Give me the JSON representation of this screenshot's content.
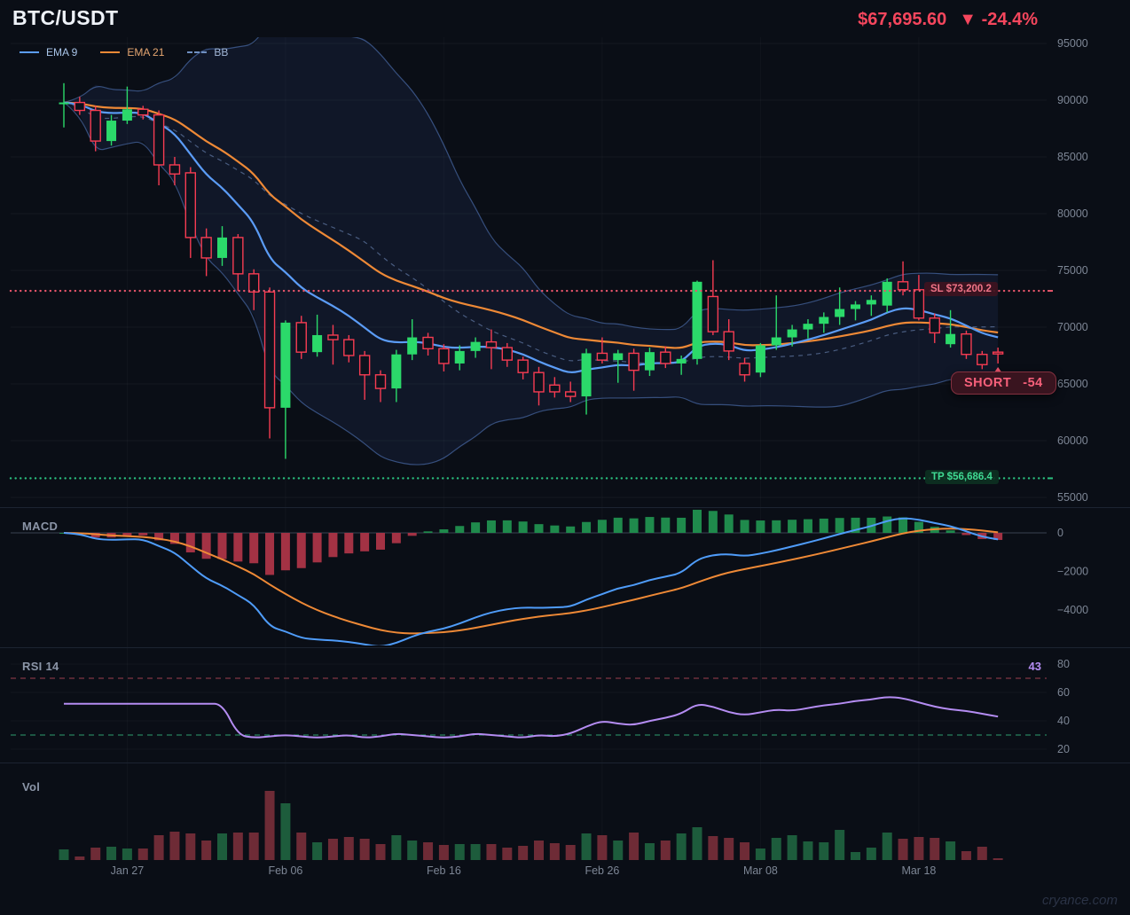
{
  "header": {
    "symbol": "BTC/USDT",
    "price": "$67,695.60",
    "change": "▼ -24.4%"
  },
  "legend": [
    {
      "label": "EMA 9",
      "color": "#5b9cf6",
      "style": "solid"
    },
    {
      "label": "EMA 21",
      "color": "#ee8936",
      "style": "solid"
    },
    {
      "label": "BB",
      "color": "#6f8fc0",
      "style": "dashed"
    }
  ],
  "panels": {
    "macd_label": "MACD",
    "rsi_label": "RSI 14",
    "vol_label": "Vol"
  },
  "watermark": "cryance.com",
  "colors": {
    "background": "#0a0e16",
    "bullish": "#2bd96a",
    "bearish": "#f6465d",
    "ema9": "#5b9cf6",
    "ema21": "#ee8936",
    "bb_line": "rgba(96,140,220,0.5)",
    "bb_fill": "rgba(80,125,220,0.09)",
    "sl_line": "#e8556b",
    "tp_line": "#2bc07f",
    "macd_line": "#4f9cf9",
    "macd_signal": "#ee8936",
    "hist_pos": "#1f8a4c",
    "hist_neg": "#a33244",
    "rsi_line": "#b48cf2",
    "vol_up": "#1d5c3c",
    "vol_down": "#6e2b36",
    "axis_text": "#7d8695"
  },
  "chart_data": {
    "type": "candlestick",
    "title": "BTC/USDT daily with EMA 9/21, Bollinger Bands, MACD, RSI 14, Volume",
    "price_axis": [
      {
        "label": "95000",
        "v": 95000
      },
      {
        "label": "90000",
        "v": 90000
      },
      {
        "label": "85000",
        "v": 85000
      },
      {
        "label": "80000",
        "v": 80000
      },
      {
        "label": "75000",
        "v": 75000
      },
      {
        "label": "70000",
        "v": 70000
      },
      {
        "label": "65000",
        "v": 65000
      },
      {
        "label": "60000",
        "v": 60000
      },
      {
        "label": "55000",
        "v": 55000
      }
    ],
    "x_labels": [
      {
        "text": "Jan 27",
        "index": 4
      },
      {
        "text": "Feb 06",
        "index": 14
      },
      {
        "text": "Feb 16",
        "index": 24
      },
      {
        "text": "Feb 26",
        "index": 34
      },
      {
        "text": "Mar 08",
        "index": 44
      },
      {
        "text": "Mar 18",
        "index": 54
      }
    ],
    "candles": [
      [
        89700,
        91500,
        87600,
        89800
      ],
      [
        89800,
        90300,
        88700,
        89100
      ],
      [
        89100,
        89500,
        85500,
        86400
      ],
      [
        86400,
        88700,
        86000,
        88200
      ],
      [
        88200,
        91200,
        87900,
        89200
      ],
      [
        89200,
        89500,
        88300,
        88700
      ],
      [
        88700,
        89100,
        82500,
        84300
      ],
      [
        84300,
        85000,
        82500,
        83500
      ],
      [
        83600,
        84100,
        76100,
        77900
      ],
      [
        77900,
        78700,
        74500,
        76100
      ],
      [
        76100,
        78900,
        75400,
        77900
      ],
      [
        77900,
        78200,
        73200,
        74700
      ],
      [
        74700,
        75100,
        71500,
        73100
      ],
      [
        73100,
        73500,
        60200,
        62900
      ],
      [
        62900,
        70600,
        58400,
        70400
      ],
      [
        70400,
        71000,
        67200,
        67800
      ],
      [
        67800,
        71100,
        67400,
        69300
      ],
      [
        69300,
        70200,
        66700,
        68900
      ],
      [
        68900,
        69300,
        66900,
        67500
      ],
      [
        67500,
        67900,
        63600,
        65800
      ],
      [
        65800,
        66200,
        63400,
        64600
      ],
      [
        64600,
        68000,
        63400,
        67600
      ],
      [
        67600,
        70700,
        67100,
        69100
      ],
      [
        69100,
        69500,
        67500,
        68100
      ],
      [
        68100,
        68500,
        66100,
        66800
      ],
      [
        66800,
        68400,
        66200,
        67900
      ],
      [
        67900,
        69100,
        67300,
        68700
      ],
      [
        68700,
        69800,
        66300,
        68200
      ],
      [
        68200,
        68600,
        66500,
        67100
      ],
      [
        67100,
        67400,
        65400,
        66000
      ],
      [
        66000,
        66500,
        63100,
        64300
      ],
      [
        64900,
        65600,
        63800,
        64300
      ],
      [
        64300,
        65200,
        63400,
        63900
      ],
      [
        63900,
        68100,
        62300,
        67700
      ],
      [
        67700,
        69100,
        66800,
        67100
      ],
      [
        67100,
        68000,
        65100,
        67700
      ],
      [
        67700,
        68100,
        64400,
        66200
      ],
      [
        66200,
        68200,
        65700,
        67800
      ],
      [
        67800,
        68300,
        66400,
        66800
      ],
      [
        66800,
        67500,
        65800,
        67200
      ],
      [
        67200,
        74100,
        66700,
        74000
      ],
      [
        72700,
        75900,
        69300,
        69600
      ],
      [
        69600,
        70700,
        67100,
        67900
      ],
      [
        66800,
        67300,
        65200,
        65800
      ],
      [
        66000,
        68600,
        65600,
        68400
      ],
      [
        68400,
        72800,
        68000,
        69100
      ],
      [
        69100,
        70200,
        68300,
        69800
      ],
      [
        69800,
        70700,
        69000,
        70300
      ],
      [
        70300,
        71300,
        69500,
        70900
      ],
      [
        70900,
        73500,
        70200,
        71600
      ],
      [
        71600,
        72300,
        70600,
        72000
      ],
      [
        72000,
        72800,
        71000,
        72400
      ],
      [
        71900,
        74300,
        71300,
        74000
      ],
      [
        74000,
        75800,
        72800,
        73300
      ],
      [
        73300,
        74600,
        70600,
        70800
      ],
      [
        70800,
        71200,
        68600,
        69500
      ],
      [
        68500,
        71500,
        68200,
        69400
      ],
      [
        69400,
        69700,
        67200,
        67600
      ],
      [
        67600,
        67900,
        66300,
        66700
      ],
      [
        67800,
        68200,
        66800,
        67700
      ]
    ],
    "volume": [
      12,
      4,
      14,
      15,
      13,
      13,
      28,
      32,
      30,
      22,
      30,
      31,
      31,
      78,
      64,
      31,
      20,
      24,
      26,
      24,
      18,
      28,
      22,
      20,
      17,
      18,
      18,
      18,
      14,
      16,
      22,
      19,
      17,
      30,
      28,
      22,
      31,
      19,
      22,
      30,
      37,
      27,
      25,
      20,
      13,
      25,
      28,
      21,
      20,
      34,
      9,
      14,
      31,
      24,
      26,
      25,
      21,
      10,
      15,
      2
    ],
    "indicators": {
      "ema": [
        9,
        21
      ],
      "bb": {
        "period": 20,
        "stddev": 2
      },
      "macd": {
        "fast": 12,
        "slow": 26,
        "signal": 9,
        "axis": [
          {
            "label": "0",
            "v": 0
          },
          {
            "label": "−2000",
            "v": -2000
          },
          {
            "label": "−4000",
            "v": -4000
          }
        ]
      },
      "rsi": {
        "period": 14,
        "value": "43",
        "overbought": 70,
        "oversold": 30,
        "axis": [
          80,
          60,
          40,
          20
        ],
        "series": [
          52,
          52,
          52,
          52,
          52,
          52,
          52,
          52,
          52,
          52,
          52,
          30,
          28,
          29,
          30,
          29,
          28,
          29,
          30,
          28,
          29,
          31,
          30,
          29,
          28,
          29,
          31,
          30,
          29,
          28,
          30,
          29,
          31,
          36,
          40,
          38,
          37,
          40,
          42,
          45,
          52,
          50,
          46,
          44,
          46,
          48,
          47,
          49,
          51,
          52,
          54,
          55,
          57,
          56,
          53,
          50,
          48,
          47,
          45,
          43
        ]
      }
    },
    "orders": {
      "sl": {
        "label": "SL $73,200.2",
        "price": 73200.2
      },
      "tp": {
        "label": "TP $56,686.4",
        "price": 56686.4
      },
      "position": {
        "label": "SHORT",
        "pnl": "-54",
        "anchor_index": 59,
        "anchor_price": 66800
      }
    }
  }
}
